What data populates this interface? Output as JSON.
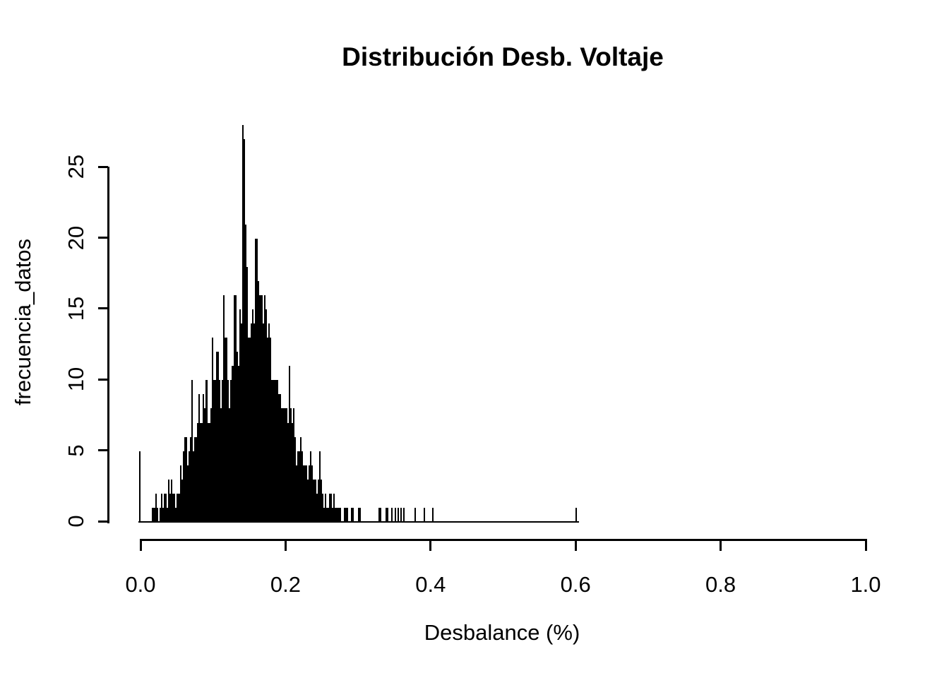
{
  "title": "Distribución Desb. Voltaje",
  "x_axis": {
    "label": "Desbalance (%)",
    "tick_values": [
      0.0,
      0.2,
      0.4,
      0.6,
      0.8,
      1.0
    ],
    "tick_labels": [
      "0.0",
      "0.2",
      "0.4",
      "0.6",
      "0.8",
      "1.0"
    ]
  },
  "y_axis": {
    "label": "frecuencia_datos",
    "tick_values": [
      0,
      5,
      10,
      15,
      20,
      25
    ],
    "tick_labels": [
      "0",
      "5",
      "10",
      "15",
      "20",
      "25"
    ]
  },
  "colors": {
    "bar": "#000000",
    "axis": "#000000",
    "text": "#000000",
    "background": "#ffffff"
  },
  "chart_data": {
    "type": "bar",
    "subtype": "histogram",
    "title": "Distribución Desb. Voltaje",
    "xlabel": "Desbalance (%)",
    "ylabel": "frecuencia_datos",
    "xlim": [
      0.0,
      1.0
    ],
    "ylim": [
      0,
      28
    ],
    "grid": false,
    "legend": null,
    "bin_start": 0.0,
    "bin_width": 0.002,
    "x_tick_labels": [
      "0.0",
      "0.2",
      "0.4",
      "0.6",
      "0.8",
      "1.0"
    ],
    "y_tick_labels": [
      "0",
      "5",
      "10",
      "15",
      "20",
      "25"
    ],
    "values": [
      5,
      0,
      0,
      0,
      0,
      0,
      0,
      0,
      0,
      1,
      1,
      2,
      1,
      0,
      1,
      2,
      1,
      2,
      2,
      1,
      3,
      2,
      3,
      2,
      2,
      1,
      2,
      2,
      4,
      3,
      5,
      6,
      6,
      4,
      5,
      6,
      10,
      5,
      6,
      6,
      7,
      9,
      7,
      7,
      9,
      8,
      10,
      7,
      7,
      8,
      13,
      10,
      10,
      12,
      12,
      10,
      8,
      10,
      16,
      13,
      13,
      10,
      8,
      10,
      11,
      16,
      16,
      12,
      11,
      15,
      14,
      28,
      27,
      21,
      18,
      13,
      13,
      14,
      15,
      14,
      20,
      20,
      17,
      16,
      16,
      14,
      16,
      15,
      13,
      14,
      13,
      10,
      10,
      10,
      10,
      10,
      9,
      9,
      8,
      8,
      8,
      8,
      7,
      11,
      8,
      7,
      8,
      6,
      4,
      5,
      5,
      6,
      5,
      4,
      4,
      4,
      3,
      4,
      5,
      4,
      3,
      3,
      2,
      3,
      5,
      3,
      2,
      1,
      2,
      1,
      1,
      2,
      2,
      1,
      2,
      1,
      1,
      1,
      1,
      0,
      0,
      1,
      1,
      1,
      0,
      0,
      1,
      1,
      0,
      0,
      0,
      1,
      1,
      0,
      0,
      0,
      0,
      0,
      0,
      0,
      0,
      0,
      0,
      0,
      0,
      1,
      1,
      0,
      0,
      0,
      1,
      1,
      0,
      0,
      1,
      0,
      1,
      0,
      1,
      0,
      1,
      0,
      1,
      0,
      0,
      0,
      0,
      0,
      0,
      0,
      1,
      0,
      0,
      0,
      0,
      0,
      1,
      0,
      0,
      0,
      0,
      0,
      1,
      0,
      0,
      0,
      0,
      0,
      0,
      0,
      0,
      0,
      0,
      0,
      0,
      0,
      0,
      0,
      0,
      0,
      0,
      0,
      0,
      0,
      0,
      0,
      0,
      0,
      0,
      0,
      0,
      0,
      0,
      0,
      0,
      0,
      0,
      0,
      0,
      0,
      0,
      0,
      0,
      0,
      0,
      0,
      0,
      0,
      0,
      0,
      0,
      0,
      0,
      0,
      0,
      0,
      0,
      0,
      0,
      0,
      0,
      0,
      0,
      0,
      0,
      0,
      0,
      0,
      0,
      0,
      0,
      0,
      0,
      0,
      0,
      0,
      0,
      0,
      0,
      0,
      0,
      0,
      0,
      0,
      0,
      0,
      0,
      0,
      0,
      0,
      0,
      0,
      0,
      0,
      0,
      0,
      0,
      0,
      0,
      0,
      0,
      1
    ]
  }
}
